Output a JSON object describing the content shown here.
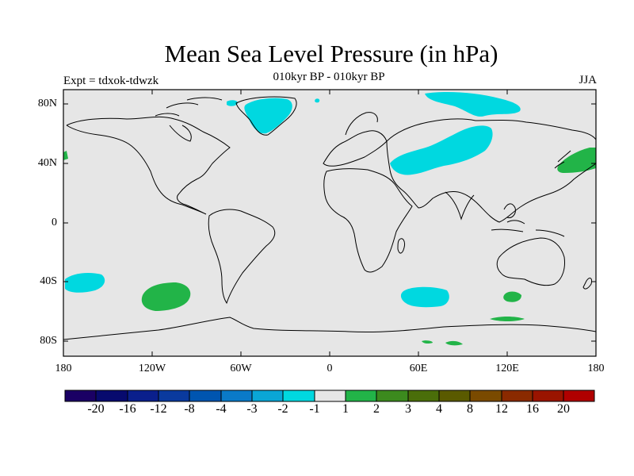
{
  "title": "Mean Sea Level Pressure (in hPa)",
  "subtitle": "010kyr BP - 010kyr BP",
  "left_label": "Expt = tdxok-tdwzk",
  "right_label": "JJA",
  "map": {
    "lat_labels": [
      "80N",
      "40N",
      "0",
      "40S",
      "80S"
    ],
    "lon_labels": [
      "180",
      "120W",
      "60W",
      "0",
      "60E",
      "120E",
      "180"
    ]
  },
  "colorbar": {
    "colors": [
      "#1a0064",
      "#070a6e",
      "#0a1f8c",
      "#0a3a9e",
      "#0055b0",
      "#0a7ac8",
      "#0aa6d6",
      "#00d8e0",
      "#e6e6e6",
      "#22b448",
      "#3c8a1e",
      "#4a6e0a",
      "#5a5a00",
      "#7a4a00",
      "#8a2a00",
      "#9a1400",
      "#b00000",
      "#d00000"
    ],
    "labels": [
      "-20",
      "-16",
      "-12",
      "-8",
      "-4",
      "-3",
      "-2",
      "-1",
      "1",
      "2",
      "3",
      "4",
      "8",
      "12",
      "16",
      "20"
    ]
  },
  "colors": {
    "background": "#e6e6e6",
    "negative_anomaly": "#00d8e0",
    "positive_anomaly": "#22b448"
  }
}
